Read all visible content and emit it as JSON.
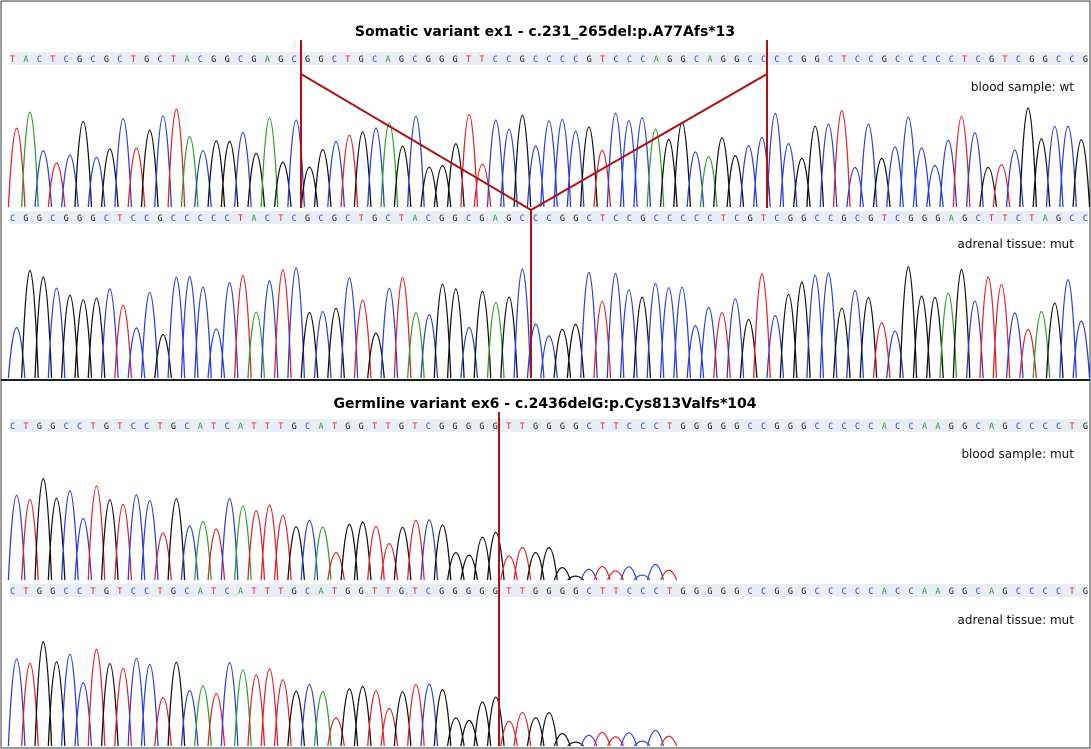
{
  "colors": {
    "A": "#2ca02c",
    "C": "#2b3fd6",
    "G": "#111111",
    "T": "#e0222a",
    "marker": "#b01010",
    "frame": "#3a3a3a",
    "seq_bg": "#e9eef6"
  },
  "panels": [
    {
      "title": "Somatic variant ex1 - c.231_265del:p.A77Afs*13",
      "tracks": [
        {
          "label": "blood sample: wt",
          "sequence": "TACTCGCGCTGCTACGGCGAGCGGCTGCAGCGGGTTCCGCCCCGTCCCAGGCAGGCCCCGGCTCCGCCCCCTCGTCGGCCG"
        },
        {
          "label": "adrenal tissue: mut",
          "sequence": "CGGCGGGCTCCGCCCCCTACTCGCGCTGCTACGGCGAGCCCGGCTCCGCCCCCTCGTCGGCCGCGTCGGGAGCTTCTAGCC"
        }
      ]
    },
    {
      "title": "Germline variant ex6 - c.2436delG:p.Cys813Valfs*104",
      "tracks": [
        {
          "label": "blood sample: mut",
          "sequence": "CTGGCCTGTCCTGCATCATTTGCATGGTTGTCGGGGGTTGGGGCTTCCCTGGGGGCCGGGCCCCCACCAAGGCAGCCCCTG"
        },
        {
          "label": "adrenal tissue: mut",
          "sequence": "CTGGCCTGTCCTGCATCATTTGCATGGTTGTCGGGGGTTGGGGCTTCCCTGGGGGCCGGGCCCCCACCAAGGCAGCCCCTG"
        }
      ]
    }
  ]
}
